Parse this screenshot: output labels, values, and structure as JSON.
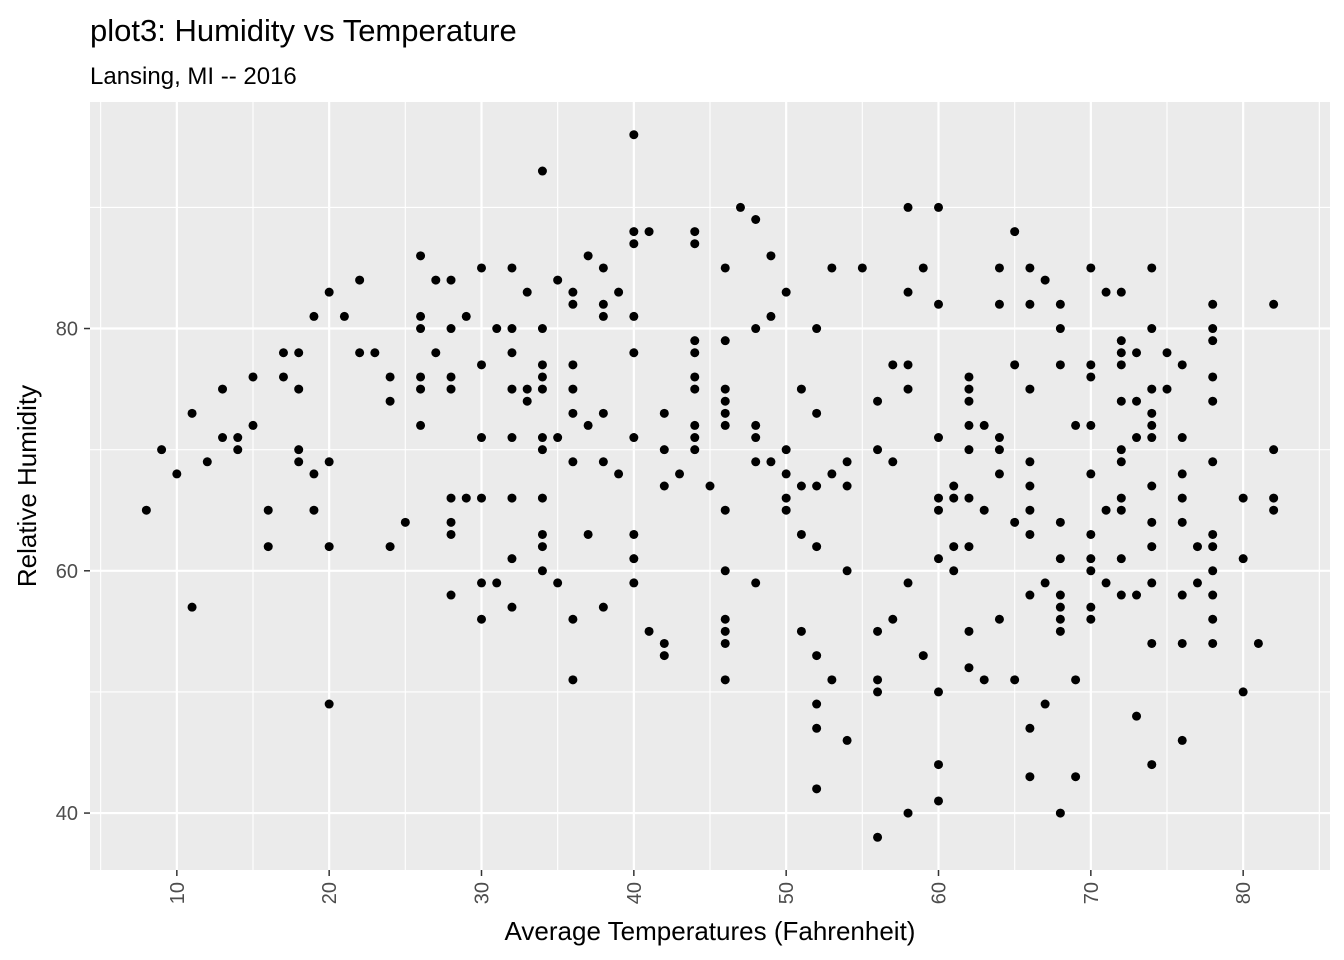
{
  "chart_data": {
    "type": "scatter",
    "title": "plot3: Humidity vs Temperature",
    "subtitle": "Lansing, MI -- 2016",
    "xlabel": "Average Temperatures (Fahrenheit)",
    "ylabel": "Relative Humidity",
    "xlim": [
      4.3,
      85.7
    ],
    "ylim": [
      35.3,
      98.7
    ],
    "x_ticks": [
      10,
      20,
      30,
      40,
      50,
      60,
      70,
      80
    ],
    "y_ticks": [
      40,
      60,
      80
    ],
    "grid": true,
    "legend": "none",
    "colors": {
      "panel": "#ebebeb",
      "grid": "#ffffff",
      "point": "#000000",
      "tick": "#333333"
    },
    "points": [
      [
        8,
        65
      ],
      [
        9,
        70
      ],
      [
        10,
        68
      ],
      [
        11,
        73
      ],
      [
        11,
        57
      ],
      [
        12,
        69
      ],
      [
        13,
        75
      ],
      [
        13,
        71
      ],
      [
        14,
        71
      ],
      [
        14,
        70
      ],
      [
        15,
        76
      ],
      [
        15,
        72
      ],
      [
        16,
        65
      ],
      [
        16,
        62
      ],
      [
        17,
        78
      ],
      [
        17,
        76
      ],
      [
        18,
        78
      ],
      [
        18,
        75
      ],
      [
        18,
        70
      ],
      [
        18,
        69
      ],
      [
        19,
        81
      ],
      [
        19,
        68
      ],
      [
        19,
        65
      ],
      [
        20,
        83
      ],
      [
        20,
        69
      ],
      [
        20,
        62
      ],
      [
        20,
        49
      ],
      [
        21,
        81
      ],
      [
        22,
        84
      ],
      [
        22,
        78
      ],
      [
        23,
        78
      ],
      [
        24,
        76
      ],
      [
        24,
        74
      ],
      [
        24,
        62
      ],
      [
        25,
        64
      ],
      [
        26,
        86
      ],
      [
        26,
        81
      ],
      [
        26,
        80
      ],
      [
        26,
        76
      ],
      [
        26,
        75
      ],
      [
        26,
        72
      ],
      [
        27,
        84
      ],
      [
        27,
        78
      ],
      [
        28,
        84
      ],
      [
        28,
        80
      ],
      [
        28,
        76
      ],
      [
        28,
        75
      ],
      [
        28,
        66
      ],
      [
        28,
        64
      ],
      [
        28,
        63
      ],
      [
        28,
        58
      ],
      [
        29,
        81
      ],
      [
        29,
        66
      ],
      [
        30,
        85
      ],
      [
        30,
        77
      ],
      [
        30,
        71
      ],
      [
        30,
        66
      ],
      [
        30,
        59
      ],
      [
        30,
        56
      ],
      [
        31,
        80
      ],
      [
        31,
        59
      ],
      [
        32,
        85
      ],
      [
        32,
        80
      ],
      [
        32,
        78
      ],
      [
        32,
        75
      ],
      [
        32,
        71
      ],
      [
        32,
        66
      ],
      [
        32,
        61
      ],
      [
        32,
        57
      ],
      [
        33,
        83
      ],
      [
        33,
        75
      ],
      [
        33,
        74
      ],
      [
        34,
        93
      ],
      [
        34,
        80
      ],
      [
        34,
        77
      ],
      [
        34,
        76
      ],
      [
        34,
        75
      ],
      [
        34,
        71
      ],
      [
        34,
        70
      ],
      [
        34,
        66
      ],
      [
        34,
        63
      ],
      [
        34,
        62
      ],
      [
        34,
        60
      ],
      [
        35,
        84
      ],
      [
        35,
        71
      ],
      [
        35,
        59
      ],
      [
        36,
        83
      ],
      [
        36,
        82
      ],
      [
        36,
        77
      ],
      [
        36,
        75
      ],
      [
        36,
        73
      ],
      [
        36,
        69
      ],
      [
        36,
        56
      ],
      [
        36,
        51
      ],
      [
        37,
        86
      ],
      [
        37,
        72
      ],
      [
        37,
        63
      ],
      [
        38,
        85
      ],
      [
        38,
        82
      ],
      [
        38,
        81
      ],
      [
        38,
        73
      ],
      [
        38,
        69
      ],
      [
        38,
        57
      ],
      [
        39,
        83
      ],
      [
        39,
        68
      ],
      [
        40,
        96
      ],
      [
        40,
        88
      ],
      [
        40,
        87
      ],
      [
        40,
        81
      ],
      [
        40,
        78
      ],
      [
        40,
        71
      ],
      [
        40,
        63
      ],
      [
        40,
        61
      ],
      [
        40,
        59
      ],
      [
        41,
        88
      ],
      [
        41,
        55
      ],
      [
        42,
        73
      ],
      [
        42,
        70
      ],
      [
        42,
        67
      ],
      [
        42,
        54
      ],
      [
        42,
        53
      ],
      [
        43,
        68
      ],
      [
        44,
        88
      ],
      [
        44,
        87
      ],
      [
        44,
        79
      ],
      [
        44,
        78
      ],
      [
        44,
        76
      ],
      [
        44,
        75
      ],
      [
        44,
        72
      ],
      [
        44,
        71
      ],
      [
        44,
        70
      ],
      [
        45,
        67
      ],
      [
        46,
        85
      ],
      [
        46,
        79
      ],
      [
        46,
        75
      ],
      [
        46,
        74
      ],
      [
        46,
        73
      ],
      [
        46,
        72
      ],
      [
        46,
        65
      ],
      [
        46,
        60
      ],
      [
        46,
        56
      ],
      [
        46,
        55
      ],
      [
        46,
        54
      ],
      [
        46,
        51
      ],
      [
        47,
        90
      ],
      [
        48,
        89
      ],
      [
        48,
        80
      ],
      [
        48,
        72
      ],
      [
        48,
        71
      ],
      [
        48,
        69
      ],
      [
        48,
        59
      ],
      [
        49,
        86
      ],
      [
        49,
        81
      ],
      [
        49,
        69
      ],
      [
        50,
        83
      ],
      [
        50,
        70
      ],
      [
        50,
        68
      ],
      [
        50,
        66
      ],
      [
        50,
        65
      ],
      [
        51,
        75
      ],
      [
        51,
        67
      ],
      [
        51,
        63
      ],
      [
        51,
        55
      ],
      [
        52,
        80
      ],
      [
        52,
        73
      ],
      [
        52,
        67
      ],
      [
        52,
        62
      ],
      [
        52,
        53
      ],
      [
        52,
        49
      ],
      [
        52,
        47
      ],
      [
        52,
        42
      ],
      [
        53,
        85
      ],
      [
        53,
        68
      ],
      [
        53,
        51
      ],
      [
        54,
        69
      ],
      [
        54,
        67
      ],
      [
        54,
        60
      ],
      [
        54,
        46
      ],
      [
        55,
        85
      ],
      [
        56,
        74
      ],
      [
        56,
        70
      ],
      [
        56,
        55
      ],
      [
        56,
        51
      ],
      [
        56,
        50
      ],
      [
        56,
        38
      ],
      [
        57,
        77
      ],
      [
        57,
        69
      ],
      [
        57,
        56
      ],
      [
        58,
        90
      ],
      [
        58,
        83
      ],
      [
        58,
        77
      ],
      [
        58,
        75
      ],
      [
        58,
        59
      ],
      [
        58,
        40
      ],
      [
        59,
        85
      ],
      [
        59,
        53
      ],
      [
        60,
        90
      ],
      [
        60,
        82
      ],
      [
        60,
        71
      ],
      [
        60,
        66
      ],
      [
        60,
        65
      ],
      [
        60,
        61
      ],
      [
        60,
        50
      ],
      [
        60,
        44
      ],
      [
        60,
        41
      ],
      [
        61,
        67
      ],
      [
        61,
        66
      ],
      [
        61,
        62
      ],
      [
        61,
        60
      ],
      [
        62,
        76
      ],
      [
        62,
        75
      ],
      [
        62,
        74
      ],
      [
        62,
        72
      ],
      [
        62,
        70
      ],
      [
        62,
        66
      ],
      [
        62,
        62
      ],
      [
        62,
        55
      ],
      [
        62,
        52
      ],
      [
        63,
        72
      ],
      [
        63,
        65
      ],
      [
        63,
        51
      ],
      [
        64,
        85
      ],
      [
        64,
        82
      ],
      [
        64,
        71
      ],
      [
        64,
        70
      ],
      [
        64,
        68
      ],
      [
        64,
        56
      ],
      [
        65,
        88
      ],
      [
        65,
        77
      ],
      [
        65,
        64
      ],
      [
        65,
        51
      ],
      [
        66,
        85
      ],
      [
        66,
        82
      ],
      [
        66,
        75
      ],
      [
        66,
        69
      ],
      [
        66,
        67
      ],
      [
        66,
        65
      ],
      [
        66,
        63
      ],
      [
        66,
        58
      ],
      [
        66,
        47
      ],
      [
        66,
        43
      ],
      [
        67,
        84
      ],
      [
        67,
        59
      ],
      [
        67,
        49
      ],
      [
        68,
        82
      ],
      [
        68,
        80
      ],
      [
        68,
        77
      ],
      [
        68,
        64
      ],
      [
        68,
        61
      ],
      [
        68,
        58
      ],
      [
        68,
        57
      ],
      [
        68,
        56
      ],
      [
        68,
        55
      ],
      [
        68,
        40
      ],
      [
        69,
        72
      ],
      [
        69,
        51
      ],
      [
        69,
        43
      ],
      [
        70,
        85
      ],
      [
        70,
        77
      ],
      [
        70,
        76
      ],
      [
        70,
        72
      ],
      [
        70,
        68
      ],
      [
        70,
        63
      ],
      [
        70,
        61
      ],
      [
        70,
        60
      ],
      [
        70,
        57
      ],
      [
        70,
        56
      ],
      [
        71,
        83
      ],
      [
        71,
        65
      ],
      [
        71,
        59
      ],
      [
        72,
        83
      ],
      [
        72,
        79
      ],
      [
        72,
        78
      ],
      [
        72,
        77
      ],
      [
        72,
        74
      ],
      [
        72,
        70
      ],
      [
        72,
        69
      ],
      [
        72,
        66
      ],
      [
        72,
        65
      ],
      [
        72,
        61
      ],
      [
        72,
        58
      ],
      [
        73,
        78
      ],
      [
        73,
        74
      ],
      [
        73,
        71
      ],
      [
        73,
        58
      ],
      [
        73,
        48
      ],
      [
        74,
        85
      ],
      [
        74,
        80
      ],
      [
        74,
        75
      ],
      [
        74,
        73
      ],
      [
        74,
        72
      ],
      [
        74,
        71
      ],
      [
        74,
        67
      ],
      [
        74,
        64
      ],
      [
        74,
        62
      ],
      [
        74,
        59
      ],
      [
        74,
        54
      ],
      [
        74,
        44
      ],
      [
        75,
        78
      ],
      [
        75,
        75
      ],
      [
        76,
        77
      ],
      [
        76,
        71
      ],
      [
        76,
        68
      ],
      [
        76,
        66
      ],
      [
        76,
        64
      ],
      [
        76,
        58
      ],
      [
        76,
        54
      ],
      [
        76,
        46
      ],
      [
        77,
        62
      ],
      [
        77,
        59
      ],
      [
        78,
        82
      ],
      [
        78,
        80
      ],
      [
        78,
        79
      ],
      [
        78,
        76
      ],
      [
        78,
        74
      ],
      [
        78,
        69
      ],
      [
        78,
        63
      ],
      [
        78,
        62
      ],
      [
        78,
        60
      ],
      [
        78,
        58
      ],
      [
        78,
        56
      ],
      [
        78,
        54
      ],
      [
        80,
        66
      ],
      [
        80,
        61
      ],
      [
        80,
        50
      ],
      [
        81,
        54
      ],
      [
        82,
        82
      ],
      [
        82,
        70
      ],
      [
        82,
        66
      ],
      [
        82,
        65
      ]
    ]
  }
}
